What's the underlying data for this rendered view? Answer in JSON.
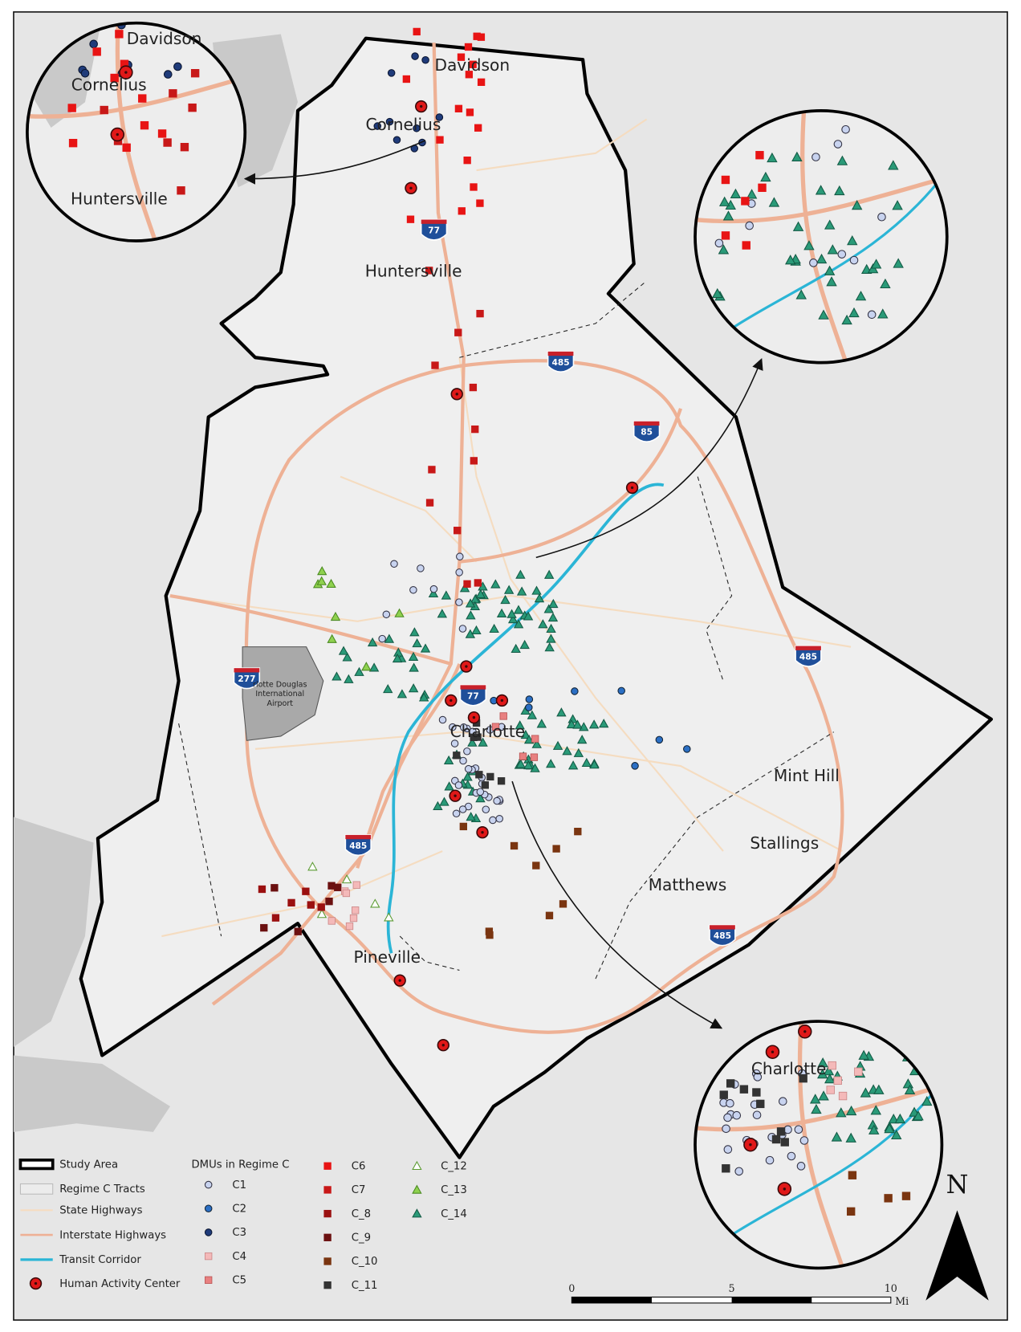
{
  "map": {
    "places": [
      "Davidson",
      "Cornelius",
      "Huntersville",
      "Charlotte",
      "Mint Hill",
      "Stallings",
      "Matthews",
      "Pineville"
    ],
    "shields": [
      "77",
      "485",
      "85",
      "485",
      "277",
      "77",
      "485",
      "485"
    ],
    "airport": [
      "rlotte Douglas",
      "International",
      "Airport"
    ],
    "inset_north": [
      "Davidson",
      "Cornelius",
      "Huntersville"
    ],
    "inset_south": [
      "Charlotte"
    ]
  },
  "legend": {
    "items": [
      "Study Area",
      "Regime C Tracts",
      "State Highways",
      "Interstate Highways",
      "Transit Corridor",
      "Human Activity Center"
    ],
    "dmu_title": "DMUs in Regime C",
    "dmu_classes": [
      "C1",
      "C2",
      "C3",
      "C4",
      "C5",
      "C6",
      "C7",
      "C_8",
      "C_9",
      "C_10",
      "C_11",
      "C_12",
      "C_13",
      "C_14"
    ]
  },
  "scale_bar": {
    "ticks": [
      "0",
      "5",
      "10"
    ],
    "unit": "Mi"
  },
  "north": "N"
}
